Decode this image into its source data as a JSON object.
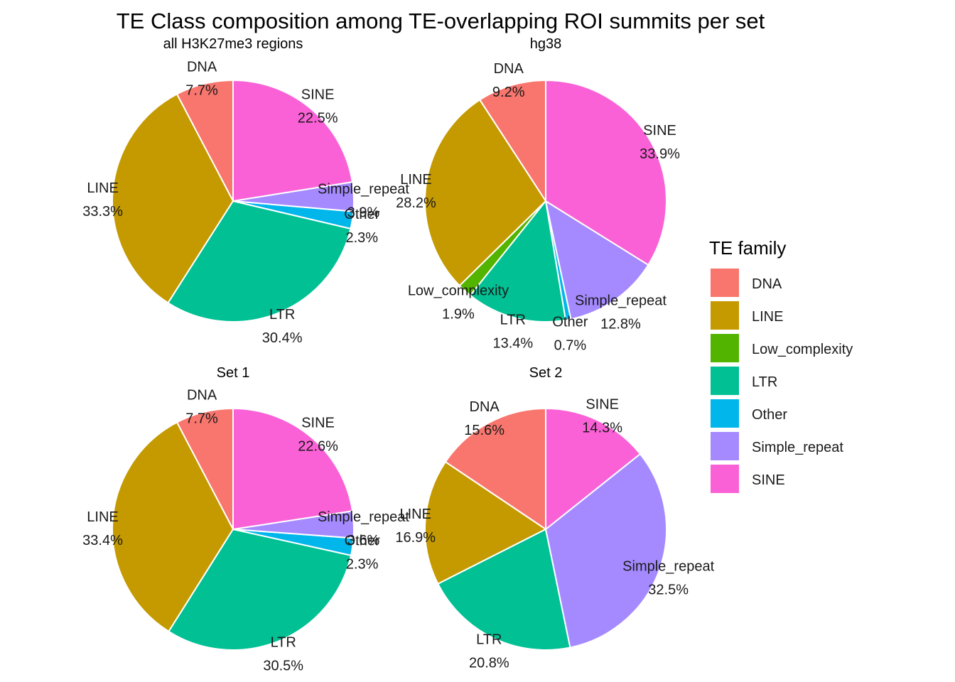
{
  "chart_data": {
    "type": "pie",
    "title": "TE Class composition among TE-overlapping ROI summits per set",
    "legend": {
      "title": "TE family",
      "placement": "right",
      "entries": [
        {
          "name": "DNA",
          "color": "#F8766D"
        },
        {
          "name": "LINE",
          "color": "#C49A00"
        },
        {
          "name": "Low_complexity",
          "color": "#53B400"
        },
        {
          "name": "LTR",
          "color": "#00C094"
        },
        {
          "name": "Other",
          "color": "#00B6EB"
        },
        {
          "name": "Simple_repeat",
          "color": "#A58AFF"
        },
        {
          "name": "SINE",
          "color": "#FB61D7"
        }
      ]
    },
    "panels": [
      {
        "subtitle": "all  H3K27me3  regions",
        "slices": [
          {
            "name": "DNA",
            "value": 7.7,
            "label": "DNA\n7.7%"
          },
          {
            "name": "LINE",
            "value": 33.3,
            "label": "LINE\n33.3%"
          },
          {
            "name": "LTR",
            "value": 30.4,
            "label": "LTR\n30.4%"
          },
          {
            "name": "Other",
            "value": 2.3,
            "label": "Other\n2.3%"
          },
          {
            "name": "Simple_repeat",
            "value": 3.9,
            "label": "Simple_repeat\n3.9%"
          },
          {
            "name": "SINE",
            "value": 22.5,
            "label": "SINE\n22.5%"
          }
        ]
      },
      {
        "subtitle": "hg38",
        "slices": [
          {
            "name": "DNA",
            "value": 9.2,
            "label": "DNA\n9.2%"
          },
          {
            "name": "LINE",
            "value": 28.2,
            "label": "LINE\n28.2%"
          },
          {
            "name": "Low_complexity",
            "value": 1.9,
            "label": "Low_complexity\n1.9%"
          },
          {
            "name": "LTR",
            "value": 13.4,
            "label": "LTR\n13.4%"
          },
          {
            "name": "Other",
            "value": 0.7,
            "label": "Other\n0.7%"
          },
          {
            "name": "Simple_repeat",
            "value": 12.8,
            "label": "Simple_repeat\n12.8%"
          },
          {
            "name": "SINE",
            "value": 33.9,
            "label": "SINE\n33.9%"
          }
        ]
      },
      {
        "subtitle": "Set  1",
        "slices": [
          {
            "name": "DNA",
            "value": 7.7,
            "label": "DNA\n7.7%"
          },
          {
            "name": "LINE",
            "value": 33.4,
            "label": "LINE\n33.4%"
          },
          {
            "name": "LTR",
            "value": 30.5,
            "label": "LTR\n30.5%"
          },
          {
            "name": "Other",
            "value": 2.3,
            "label": "Other\n2.3%"
          },
          {
            "name": "Simple_repeat",
            "value": 3.6,
            "label": "Simple_repeat\n3.6%"
          },
          {
            "name": "SINE",
            "value": 22.6,
            "label": "SINE\n22.6%"
          }
        ]
      },
      {
        "subtitle": "Set  2",
        "slices": [
          {
            "name": "DNA",
            "value": 15.6,
            "label": "DNA\n15.6%"
          },
          {
            "name": "LINE",
            "value": 16.9,
            "label": "LINE\n16.9%"
          },
          {
            "name": "LTR",
            "value": 20.8,
            "label": "LTR\n20.8%"
          },
          {
            "name": "Simple_repeat",
            "value": 32.5,
            "label": "Simple_repeat\n32.5%"
          },
          {
            "name": "SINE",
            "value": 14.3,
            "label": "SINE\n14.3%"
          }
        ]
      }
    ]
  }
}
